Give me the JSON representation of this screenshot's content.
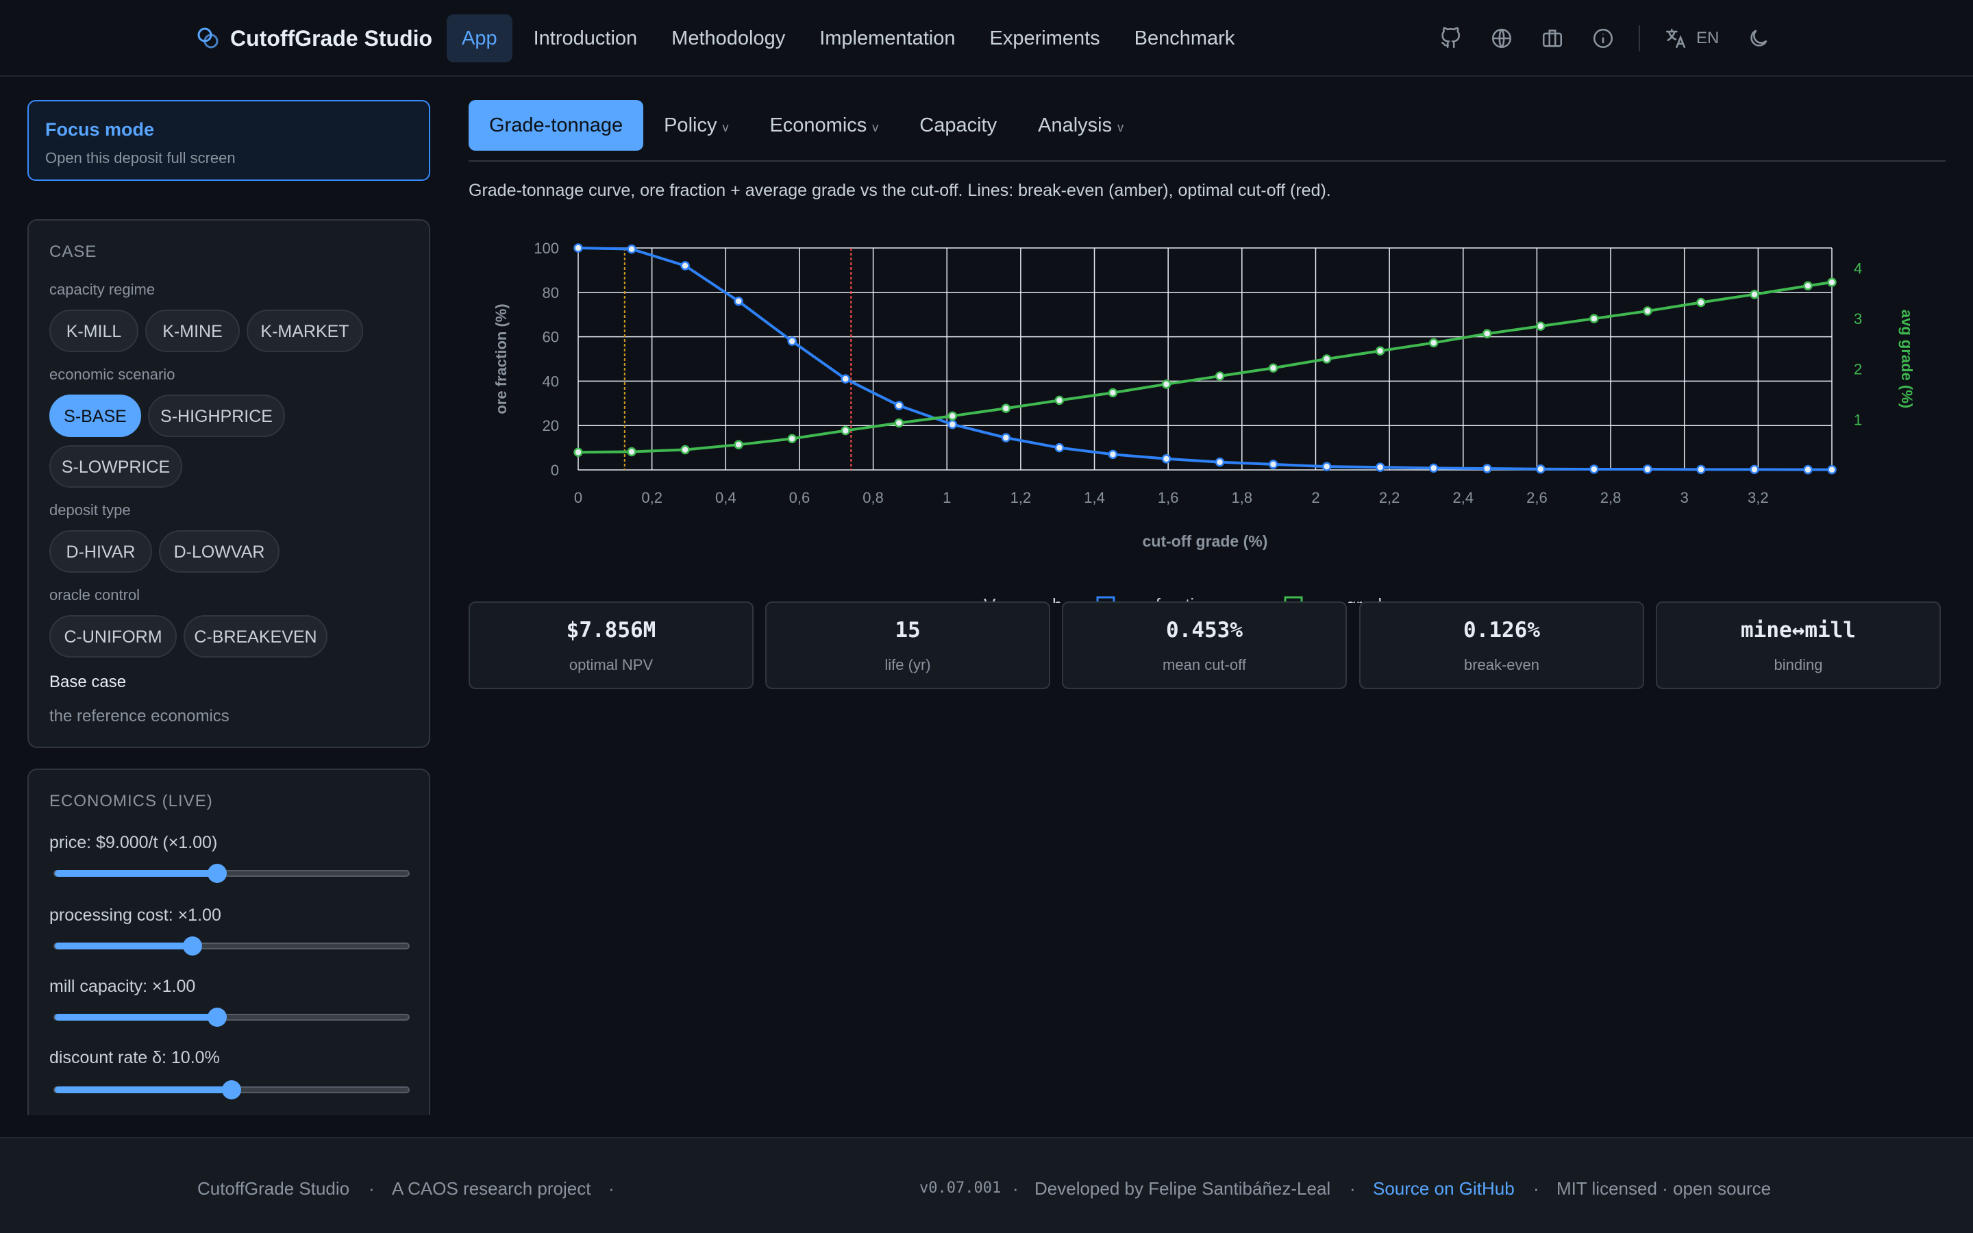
{
  "app": {
    "brand": "CutoffGrade Studio"
  },
  "nav": {
    "items": [
      "App",
      "Introduction",
      "Methodology",
      "Implementation",
      "Experiments",
      "Benchmark"
    ],
    "active": "App"
  },
  "header_right": {
    "lang": "EN",
    "icons": [
      "github-icon",
      "globe-icon",
      "suitcase-icon",
      "info-icon",
      "translate-icon",
      "moon-icon"
    ]
  },
  "focus": {
    "title": "Focus mode",
    "subtitle": "Open this deposit full screen"
  },
  "case_panel": {
    "title": "CASE",
    "capacity_label": "capacity regime",
    "capacity_options": [
      "K-MILL",
      "K-MINE",
      "K-MARKET"
    ],
    "economic_label": "economic scenario",
    "economic_options": [
      "S-BASE",
      "S-HIGHPRICE",
      "S-LOWPRICE"
    ],
    "economic_selected": "S-BASE",
    "deposit_label": "deposit type",
    "deposit_options": [
      "D-HIVAR",
      "D-LOWVAR"
    ],
    "oracle_label": "oracle control",
    "oracle_options": [
      "C-UNIFORM",
      "C-BREAKEVEN"
    ],
    "case_name": "Base case",
    "case_desc": "the reference economics"
  },
  "economics_panel": {
    "title": "ECONOMICS (LIVE)",
    "sliders": [
      {
        "label": "price: $9.000/t (×1.00)",
        "value": 0.46
      },
      {
        "label": "processing cost: ×1.00",
        "value": 0.39
      },
      {
        "label": "mill capacity: ×1.00",
        "value": 0.46
      },
      {
        "label": "discount rate δ: 10.0%",
        "value": 0.5
      }
    ]
  },
  "tabs": {
    "items": [
      "Grade-tonnage",
      "Policy",
      "Economics",
      "Capacity",
      "Analysis"
    ],
    "dropdown": [
      false,
      true,
      true,
      false,
      true
    ],
    "active": "Grade-tonnage",
    "caret": "v"
  },
  "caption": "Grade-tonnage curve, ore fraction + average grade vs the cut-off. Lines: break-even (amber), optimal cut-off (red).",
  "chart_data": {
    "type": "line",
    "xlabel": "cut-off grade (%)",
    "ylabel": "ore fraction (%)",
    "y2label": "avg grade (%)",
    "xlim": [
      0,
      3.4
    ],
    "ylim": [
      0,
      100
    ],
    "y2lim": [
      0,
      4.4
    ],
    "x_ticks": [
      "0",
      "0,2",
      "0,4",
      "0,6",
      "0,8",
      "1",
      "1,2",
      "1,4",
      "1,6",
      "1,8",
      "2",
      "2,2",
      "2,4",
      "2,6",
      "2,8",
      "3",
      "3,2"
    ],
    "y_ticks": [
      "0",
      "20",
      "40",
      "60",
      "80",
      "100"
    ],
    "y2_ticks": [
      "1",
      "2",
      "3",
      "4"
    ],
    "grid": true,
    "breakeven": 0.126,
    "optimal_cutoff": 0.74,
    "series": [
      {
        "name": "ore fraction",
        "axis": "left",
        "color": "#2f81f7",
        "x": [
          0,
          0.145,
          0.29,
          0.435,
          0.58,
          0.725,
          0.87,
          1.015,
          1.16,
          1.305,
          1.45,
          1.595,
          1.74,
          1.885,
          2.03,
          2.175,
          2.32,
          2.465,
          2.61,
          2.755,
          2.9,
          3.045,
          3.19,
          3.335,
          3.4
        ],
        "values": [
          100,
          99.5,
          92,
          76,
          58,
          41,
          29,
          20.5,
          14.5,
          10,
          7,
          5,
          3.5,
          2.5,
          1.5,
          1.2,
          0.8,
          0.6,
          0.4,
          0.3,
          0.3,
          0.2,
          0.2,
          0.1,
          0.1
        ]
      },
      {
        "name": "avg grade",
        "axis": "right",
        "color": "#3fb950",
        "x": [
          0,
          0.145,
          0.29,
          0.435,
          0.58,
          0.725,
          0.87,
          1.015,
          1.16,
          1.305,
          1.45,
          1.595,
          1.74,
          1.885,
          2.03,
          2.175,
          2.32,
          2.465,
          2.61,
          2.755,
          2.9,
          3.045,
          3.19,
          3.335,
          3.4
        ],
        "values": [
          0.35,
          0.36,
          0.4,
          0.5,
          0.62,
          0.78,
          0.93,
          1.07,
          1.22,
          1.38,
          1.53,
          1.7,
          1.86,
          2.02,
          2.2,
          2.36,
          2.52,
          2.7,
          2.85,
          3.0,
          3.15,
          3.32,
          3.48,
          3.65,
          3.72
        ]
      }
    ],
    "legend_visible": [
      "V",
      "b",
      "o",
      "ore fraction",
      "avg grade"
    ]
  },
  "cards": [
    {
      "value": "$7.856M",
      "label": "optimal NPV"
    },
    {
      "value": "15",
      "label": "life (yr)"
    },
    {
      "value": "0.453%",
      "label": "mean cut-off"
    },
    {
      "value": "0.126%",
      "label": "break-even"
    },
    {
      "value": "mine↔mill",
      "label": "binding"
    }
  ],
  "footer": {
    "brand": "CutoffGrade Studio",
    "project": "A CAOS research project",
    "dot": "·",
    "version": "v0.07.001",
    "developer": "Developed by Felipe Santibáñez-Leal",
    "source": "Source on GitHub",
    "license": "MIT licensed · open source"
  },
  "colors": {
    "accent": "#58a6ff",
    "breakeven": "#d29922",
    "optimal": "#f85149",
    "ore": "#2f81f7",
    "grade": "#3fb950"
  }
}
